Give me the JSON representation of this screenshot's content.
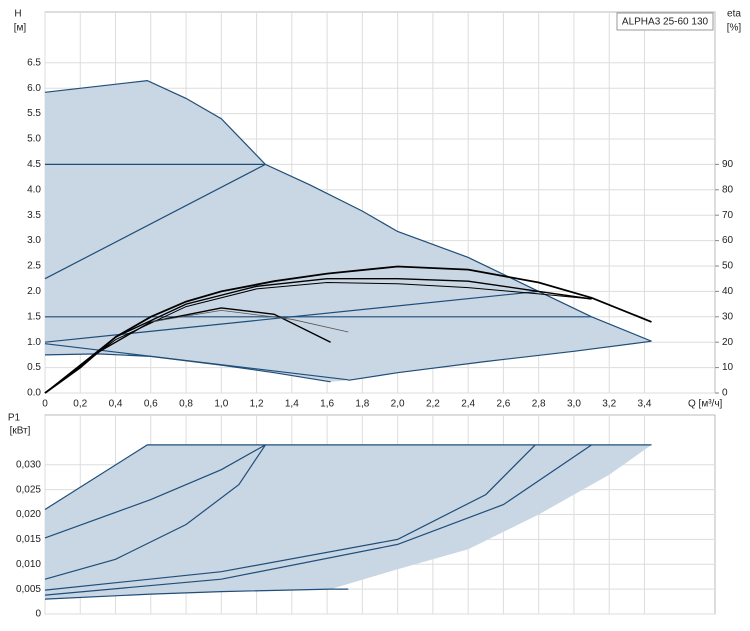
{
  "chart_data": [
    {
      "type": "line",
      "title": "ALPHA3 25-60 130",
      "ylabel": "H",
      "yunit": "[м]",
      "y2label": "eta",
      "y2unit": "[%]",
      "xlabel": "Q [м³/ч]",
      "xlim": [
        0,
        3.8
      ],
      "xticks": [
        0,
        {
          "value": 0.2,
          "label": "0,2"
        },
        {
          "value": 0.4,
          "label": "0,4"
        },
        {
          "value": 0.6,
          "label": "0,6"
        },
        {
          "value": 0.8,
          "label": "0,8"
        },
        {
          "value": 1.0,
          "label": "1,0"
        },
        {
          "value": 1.2,
          "label": "1,2"
        },
        {
          "value": 1.4,
          "label": "1,4"
        },
        {
          "value": 1.6,
          "label": "1,6"
        },
        {
          "value": 1.8,
          "label": "1,8"
        },
        {
          "value": 2.0,
          "label": "2,0"
        },
        {
          "value": 2.2,
          "label": "2,2"
        },
        {
          "value": 2.4,
          "label": "2,4"
        },
        {
          "value": 2.6,
          "label": "2,6"
        },
        {
          "value": 2.8,
          "label": "2,8"
        },
        {
          "value": 3.0,
          "label": "3,0"
        },
        {
          "value": 3.2,
          "label": "3,2"
        },
        {
          "value": 3.4,
          "label": "3,4"
        }
      ],
      "ylim": [
        0,
        7.5
      ],
      "yticks": [
        {
          "value": 0,
          "label": "0.0"
        },
        0.5,
        {
          "value": 1,
          "label": "1.0"
        },
        1.5,
        {
          "value": 2,
          "label": "2.0"
        },
        2.5,
        {
          "value": 3,
          "label": "3.0"
        },
        3.5,
        {
          "value": 4,
          "label": "4.0"
        },
        4.5,
        {
          "value": 5,
          "label": "5.0"
        },
        5.5,
        {
          "value": 6,
          "label": "6.0"
        },
        6.5
      ],
      "y2lim": [
        0,
        150
      ],
      "y2ticks": [
        0,
        10,
        20,
        30,
        40,
        50,
        60,
        70,
        80,
        90
      ],
      "grid": true,
      "series": [
        {
          "style": "area",
          "color": "#c9d6e4",
          "x": [
            0,
            0.58,
            0.8,
            1.0,
            1.25,
            1.5,
            1.8,
            2.0,
            2.4,
            2.8,
            3.1,
            3.44,
            3.0,
            2.5,
            2.0,
            1.72,
            1.62,
            1.3,
            1.0,
            0.6,
            0.3,
            0
          ],
          "values": [
            5.92,
            6.15,
            5.8,
            5.4,
            4.5,
            4.1,
            3.58,
            3.18,
            2.67,
            2.0,
            1.5,
            1.02,
            0.82,
            0.62,
            0.4,
            0.25,
            0.22,
            0.4,
            0.55,
            0.72,
            0.77,
            0.75
          ]
        },
        {
          "style": "line",
          "color": "#1f4e79",
          "x": [
            0,
            0.58,
            0.8,
            1.0,
            1.25,
            1.5,
            1.8,
            2.0,
            2.4,
            2.8,
            3.1,
            3.44
          ],
          "values": [
            5.92,
            6.15,
            5.8,
            5.4,
            4.5,
            4.1,
            3.58,
            3.18,
            2.67,
            2.0,
            1.5,
            1.02
          ]
        },
        {
          "style": "line",
          "color": "#1f4e79",
          "x": [
            0,
            1.25
          ],
          "values": [
            4.5,
            4.5
          ]
        },
        {
          "style": "line",
          "color": "#1f4e79",
          "x": [
            0,
            3.1
          ],
          "values": [
            1.5,
            1.5
          ]
        },
        {
          "style": "line",
          "color": "#1f4e79",
          "x": [
            0,
            1.25
          ],
          "values": [
            2.25,
            4.5
          ]
        },
        {
          "style": "line",
          "color": "#1f4e79",
          "x": [
            0,
            2.8
          ],
          "values": [
            1.0,
            2.0
          ]
        },
        {
          "style": "line",
          "color": "#1f4e79",
          "x": [
            3.44,
            3.0,
            2.5,
            2.0,
            1.72
          ],
          "values": [
            1.02,
            0.82,
            0.62,
            0.4,
            0.25
          ]
        },
        {
          "style": "line",
          "color": "#1f4e79",
          "x": [
            0,
            0.3,
            0.6,
            1.0,
            1.3,
            1.62
          ],
          "values": [
            0.75,
            0.77,
            0.72,
            0.55,
            0.4,
            0.22
          ]
        },
        {
          "style": "line",
          "color": "#1f4e79",
          "x": [
            0,
            1.72
          ],
          "values": [
            0.97,
            0.26
          ]
        },
        {
          "style": "line",
          "color": "#000000",
          "width": 1.8,
          "axis": "y2",
          "x": [
            0,
            0.2,
            0.4,
            0.6,
            0.8,
            1.0,
            1.3,
            1.6,
            2.0,
            2.4,
            2.8,
            3.1,
            3.44
          ],
          "values": [
            0,
            10,
            22,
            30,
            36,
            40,
            44,
            47,
            49.8,
            48.6,
            43.5,
            37.5,
            28
          ]
        },
        {
          "style": "line",
          "color": "#000000",
          "width": 1.4,
          "axis": "y2",
          "x": [
            0,
            0.4,
            0.8,
            1.2,
            1.6,
            2.0,
            2.4,
            2.8,
            3.1
          ],
          "values": [
            0,
            22,
            35,
            42,
            45,
            45,
            44,
            40,
            37
          ]
        },
        {
          "style": "line",
          "color": "#000000",
          "width": 1,
          "axis": "y2",
          "x": [
            0,
            0.4,
            0.8,
            1.2,
            1.6,
            2.0,
            2.4,
            2.8,
            3.1
          ],
          "values": [
            0,
            21,
            34,
            41,
            43.5,
            43,
            41.5,
            39,
            37
          ]
        },
        {
          "style": "line",
          "color": "#000000",
          "width": 1.4,
          "axis": "y2",
          "x": [
            0,
            0.3,
            0.6,
            1.0,
            1.3,
            1.62
          ],
          "values": [
            0,
            16,
            28,
            33.5,
            31,
            20
          ]
        },
        {
          "style": "line",
          "color": "#555555",
          "width": 0.8,
          "axis": "y2",
          "x": [
            0.6,
            1.0,
            1.4,
            1.72
          ],
          "values": [
            28,
            32.5,
            29,
            24
          ]
        }
      ]
    },
    {
      "type": "line",
      "ylabel": "P1",
      "yunit": "[кВт]",
      "sharex": true,
      "xlim": [
        0,
        3.8
      ],
      "ylim": [
        0,
        0.04
      ],
      "yticks": [
        0,
        {
          "value": 0.005,
          "label": "0,005"
        },
        {
          "value": 0.01,
          "label": "0,010"
        },
        {
          "value": 0.015,
          "label": "0,015"
        },
        {
          "value": 0.02,
          "label": "0,020"
        },
        {
          "value": 0.025,
          "label": "0,025"
        },
        {
          "value": 0.03,
          "label": "0,030"
        }
      ],
      "grid": true,
      "series": [
        {
          "style": "area",
          "color": "#c9d6e4",
          "x": [
            0,
            0.58,
            3.44,
            3.2,
            2.8,
            2.4,
            2.0,
            1.62,
            1.0,
            0.6,
            0
          ],
          "values": [
            0.021,
            0.034,
            0.034,
            0.028,
            0.02,
            0.013,
            0.009,
            0.005,
            0.0045,
            0.004,
            0.003
          ]
        },
        {
          "style": "line",
          "color": "#1f4e79",
          "x": [
            0,
            0.58,
            3.44
          ],
          "values": [
            0.021,
            0.034,
            0.034
          ]
        },
        {
          "style": "line",
          "color": "#1f4e79",
          "x": [
            0,
            0.6,
            1.0,
            1.25
          ],
          "values": [
            0.0153,
            0.023,
            0.029,
            0.034
          ]
        },
        {
          "style": "line",
          "color": "#1f4e79",
          "x": [
            0,
            0.4,
            0.8,
            1.1,
            1.25
          ],
          "values": [
            0.007,
            0.011,
            0.018,
            0.026,
            0.034
          ]
        },
        {
          "style": "line",
          "color": "#1f4e79",
          "x": [
            0,
            1.0,
            2.0,
            2.5,
            2.78
          ],
          "values": [
            0.0048,
            0.0085,
            0.015,
            0.024,
            0.034
          ]
        },
        {
          "style": "line",
          "color": "#1f4e79",
          "x": [
            0,
            1.0,
            2.0,
            2.6,
            3.1
          ],
          "values": [
            0.0038,
            0.007,
            0.014,
            0.022,
            0.034
          ]
        },
        {
          "style": "line",
          "color": "#1f4e79",
          "x": [
            0,
            0.6,
            1.0,
            1.62,
            1.72
          ],
          "values": [
            0.003,
            0.004,
            0.0045,
            0.005,
            0.005
          ]
        }
      ]
    }
  ]
}
